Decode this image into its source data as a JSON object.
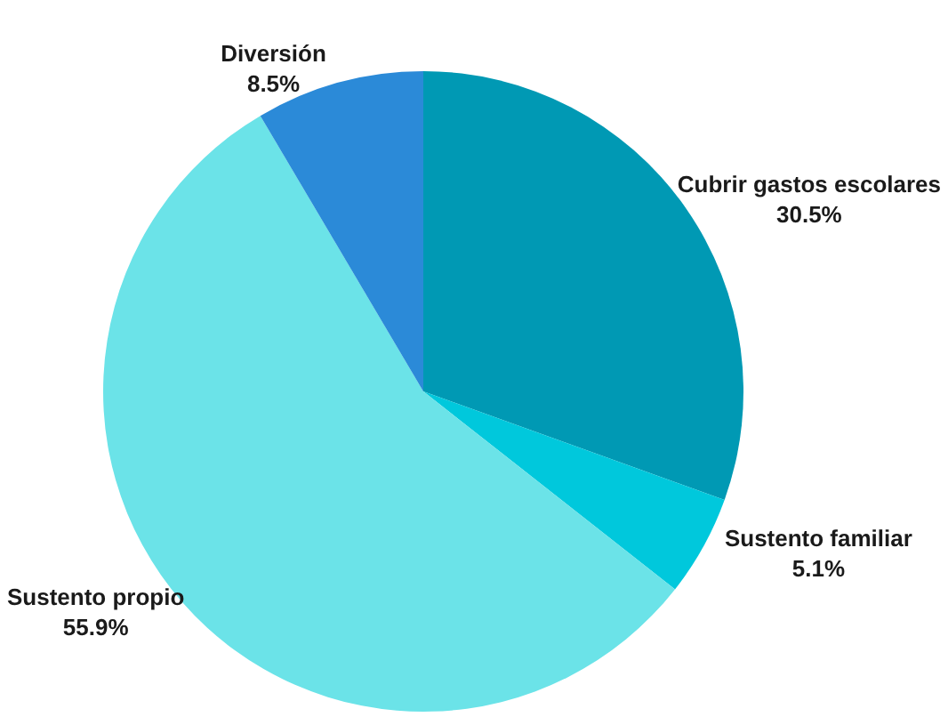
{
  "chart_data": {
    "type": "pie",
    "categories": [
      "Cubrir gastos escolares",
      "Sustento familiar",
      "Sustento propio",
      "Diversión"
    ],
    "values": [
      30.5,
      5.1,
      55.9,
      8.5
    ],
    "value_labels": [
      "30.5%",
      "5.1%",
      "55.9%",
      "8.5%"
    ],
    "colors": [
      "#0099b4",
      "#00c8dc",
      "#6be3e8",
      "#2b8ad8"
    ],
    "legend": false
  }
}
